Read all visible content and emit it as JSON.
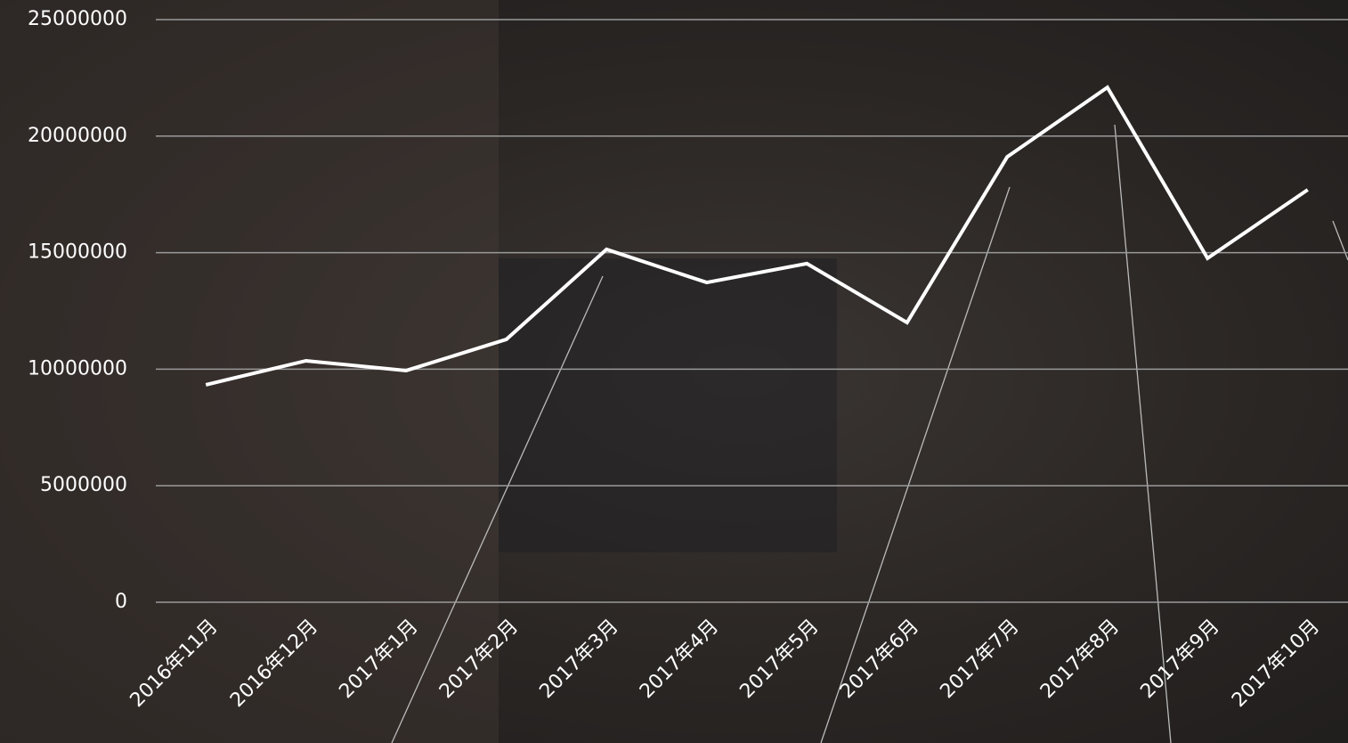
{
  "chart_data": {
    "type": "line",
    "categories": [
      "2016年11月",
      "2016年12月",
      "2017年1月",
      "2017年2月",
      "2017年3月",
      "2017年4月",
      "2017年5月",
      "2017年6月",
      "2017年7月",
      "2017年8月",
      "2017年9月",
      "2017年10月"
    ],
    "series": [
      {
        "color": "#ffffff",
        "values": [
          9330000,
          10360000,
          9940000,
          11280000,
          15140000,
          13720000,
          14530000,
          12000000,
          19110000,
          22090000,
          14760000,
          17700000
        ]
      }
    ],
    "ylim": [
      0,
      25000000
    ],
    "yticks": [
      0,
      5000000,
      10000000,
      15000000,
      20000000,
      25000000
    ],
    "grid": true
  }
}
